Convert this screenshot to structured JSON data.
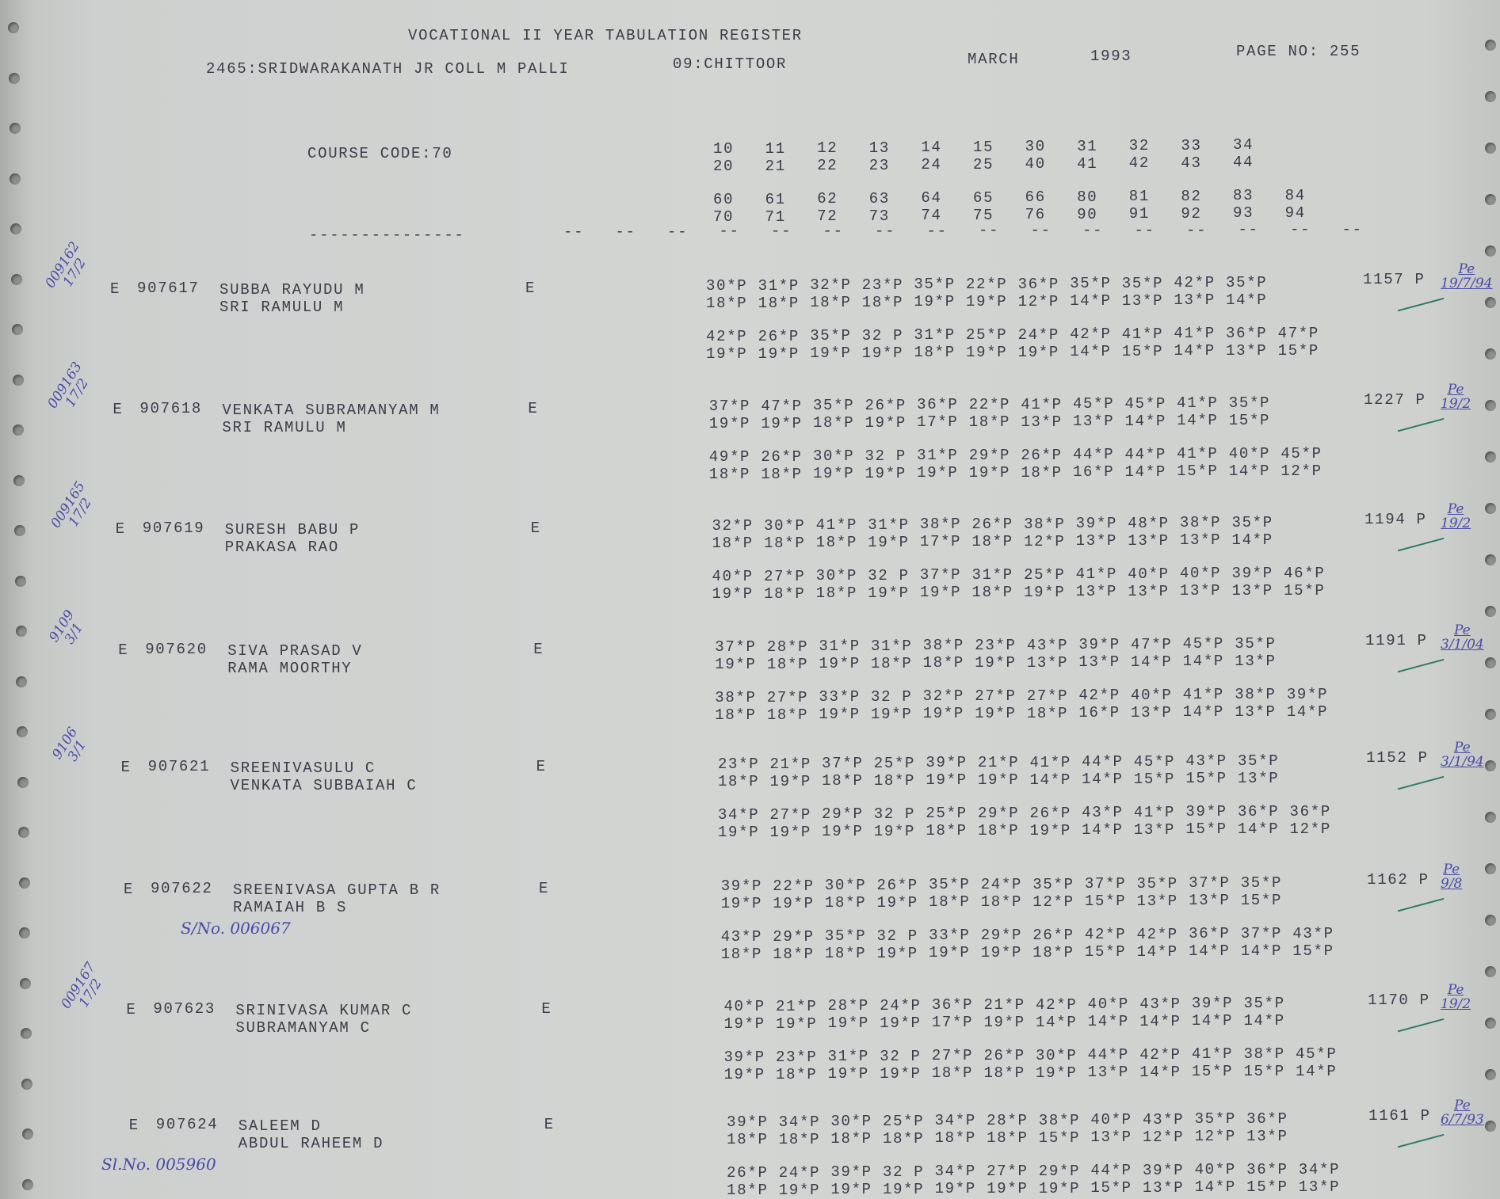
{
  "header": {
    "title": "VOCATIONAL II YEAR TABULATION REGISTER",
    "college": "2465:SRIDWARAKANATH JR COLL M PALLI",
    "district": "09:CHITTOOR",
    "month": "MARCH",
    "year": "1993",
    "page": "PAGE NO: 255",
    "course_code": "COURSE CODE:70",
    "separator": "---------------",
    "dash": "--"
  },
  "columns": {
    "row1": [
      "10",
      "11",
      "12",
      "13",
      "14",
      "15",
      "30",
      "31",
      "32",
      "33",
      "34"
    ],
    "row2": [
      "20",
      "21",
      "22",
      "23",
      "24",
      "25",
      "40",
      "41",
      "42",
      "43",
      "44"
    ],
    "row3": [
      "60",
      "61",
      "62",
      "63",
      "64",
      "65",
      "66",
      "80",
      "81",
      "82",
      "83",
      "84"
    ],
    "row4": [
      "70",
      "71",
      "72",
      "73",
      "74",
      "75",
      "76",
      "90",
      "91",
      "92",
      "93",
      "94"
    ]
  },
  "students": [
    {
      "prefix": "E",
      "roll": "907617",
      "name": "SUBBA RAYUDU M",
      "father": "SRI RAMULU M",
      "medium": "E",
      "total": "1157 P",
      "marks": [
        [
          "30*P",
          "31*P",
          "32*P",
          "23*P",
          "35*P",
          "22*P",
          "36*P",
          "35*P",
          "35*P",
          "42*P",
          "35*P"
        ],
        [
          "18*P",
          "18*P",
          "18*P",
          "18*P",
          "19*P",
          "19*P",
          "12*P",
          "14*P",
          "13*P",
          "13*P",
          "14*P"
        ],
        [
          "42*P",
          "26*P",
          "35*P",
          "32 P",
          "31*P",
          "25*P",
          "24*P",
          "42*P",
          "41*P",
          "41*P",
          "36*P",
          "47*P"
        ],
        [
          "19*P",
          "19*P",
          "19*P",
          "19*P",
          "18*P",
          "19*P",
          "19*P",
          "14*P",
          "15*P",
          "14*P",
          "13*P",
          "15*P"
        ]
      ],
      "note_left": "009162\n17/2",
      "note_right": "Pe\n19/7/94",
      "note_below": ""
    },
    {
      "prefix": "E",
      "roll": "907618",
      "name": "VENKATA SUBRAMANYAM M",
      "father": "SRI RAMULU M",
      "medium": "E",
      "total": "1227 P",
      "marks": [
        [
          "37*P",
          "47*P",
          "35*P",
          "26*P",
          "36*P",
          "22*P",
          "41*P",
          "45*P",
          "45*P",
          "41*P",
          "35*P"
        ],
        [
          "19*P",
          "19*P",
          "18*P",
          "19*P",
          "17*P",
          "18*P",
          "13*P",
          "13*P",
          "14*P",
          "14*P",
          "15*P"
        ],
        [
          "49*P",
          "26*P",
          "30*P",
          "32 P",
          "31*P",
          "29*P",
          "26*P",
          "44*P",
          "44*P",
          "41*P",
          "40*P",
          "45*P"
        ],
        [
          "18*P",
          "18*P",
          "19*P",
          "19*P",
          "19*P",
          "19*P",
          "18*P",
          "16*P",
          "14*P",
          "15*P",
          "14*P",
          "12*P"
        ]
      ],
      "note_left": "009163\n17/2",
      "note_right": "Pe\n19/2",
      "note_below": ""
    },
    {
      "prefix": "E",
      "roll": "907619",
      "name": "SURESH BABU P",
      "father": "PRAKASA RAO",
      "medium": "E",
      "total": "1194 P",
      "marks": [
        [
          "32*P",
          "30*P",
          "41*P",
          "31*P",
          "38*P",
          "26*P",
          "38*P",
          "39*P",
          "48*P",
          "38*P",
          "35*P"
        ],
        [
          "18*P",
          "18*P",
          "18*P",
          "19*P",
          "17*P",
          "18*P",
          "12*P",
          "13*P",
          "13*P",
          "13*P",
          "14*P"
        ],
        [
          "40*P",
          "27*P",
          "30*P",
          "32 P",
          "37*P",
          "31*P",
          "25*P",
          "41*P",
          "40*P",
          "40*P",
          "39*P",
          "46*P"
        ],
        [
          "19*P",
          "18*P",
          "18*P",
          "19*P",
          "19*P",
          "18*P",
          "19*P",
          "13*P",
          "13*P",
          "13*P",
          "13*P",
          "15*P"
        ]
      ],
      "note_left": "009165\n17/2",
      "note_right": "Pe\n19/2",
      "note_below": ""
    },
    {
      "prefix": "E",
      "roll": "907620",
      "name": "SIVA PRASAD V",
      "father": "RAMA MOORTHY",
      "medium": "E",
      "total": "1191 P",
      "marks": [
        [
          "37*P",
          "28*P",
          "31*P",
          "31*P",
          "38*P",
          "23*P",
          "43*P",
          "39*P",
          "47*P",
          "45*P",
          "35*P"
        ],
        [
          "19*P",
          "18*P",
          "19*P",
          "18*P",
          "18*P",
          "19*P",
          "13*P",
          "13*P",
          "14*P",
          "14*P",
          "13*P"
        ],
        [
          "38*P",
          "27*P",
          "33*P",
          "32 P",
          "32*P",
          "27*P",
          "27*P",
          "42*P",
          "40*P",
          "41*P",
          "38*P",
          "39*P"
        ],
        [
          "18*P",
          "18*P",
          "19*P",
          "19*P",
          "19*P",
          "19*P",
          "18*P",
          "16*P",
          "13*P",
          "14*P",
          "13*P",
          "14*P"
        ]
      ],
      "note_left": "9109\n3/1",
      "note_right": "Pe\n3/1/04",
      "note_below": ""
    },
    {
      "prefix": "E",
      "roll": "907621",
      "name": "SREENIVASULU C",
      "father": "VENKATA SUBBAIAH C",
      "medium": "E",
      "total": "1152 P",
      "marks": [
        [
          "23*P",
          "21*P",
          "37*P",
          "25*P",
          "39*P",
          "21*P",
          "41*P",
          "44*P",
          "45*P",
          "43*P",
          "35*P"
        ],
        [
          "18*P",
          "19*P",
          "18*P",
          "18*P",
          "19*P",
          "19*P",
          "14*P",
          "14*P",
          "15*P",
          "15*P",
          "13*P"
        ],
        [
          "34*P",
          "27*P",
          "29*P",
          "32 P",
          "25*P",
          "29*P",
          "26*P",
          "43*P",
          "41*P",
          "39*P",
          "36*P",
          "36*P"
        ],
        [
          "19*P",
          "19*P",
          "19*P",
          "19*P",
          "18*P",
          "18*P",
          "19*P",
          "14*P",
          "13*P",
          "15*P",
          "14*P",
          "12*P"
        ]
      ],
      "note_left": "9106\n3/1",
      "note_right": "Pe\n3/1/94",
      "note_below": ""
    },
    {
      "prefix": "E",
      "roll": "907622",
      "name": "SREENIVASA GUPTA B R",
      "father": "RAMAIAH B S",
      "medium": "E",
      "total": "1162 P",
      "marks": [
        [
          "39*P",
          "22*P",
          "30*P",
          "26*P",
          "35*P",
          "24*P",
          "35*P",
          "37*P",
          "35*P",
          "37*P",
          "35*P"
        ],
        [
          "19*P",
          "19*P",
          "18*P",
          "19*P",
          "18*P",
          "18*P",
          "12*P",
          "15*P",
          "13*P",
          "13*P",
          "15*P"
        ],
        [
          "43*P",
          "29*P",
          "35*P",
          "32 P",
          "33*P",
          "29*P",
          "26*P",
          "42*P",
          "42*P",
          "36*P",
          "37*P",
          "43*P"
        ],
        [
          "18*P",
          "18*P",
          "18*P",
          "19*P",
          "19*P",
          "19*P",
          "18*P",
          "15*P",
          "14*P",
          "14*P",
          "14*P",
          "15*P"
        ]
      ],
      "note_left": "",
      "note_right": "Pe\n9/8",
      "note_below": "S/No. 006067"
    },
    {
      "prefix": "E",
      "roll": "907623",
      "name": "SRINIVASA KUMAR C",
      "father": "SUBRAMANYAM C",
      "medium": "E",
      "total": "1170 P",
      "marks": [
        [
          "40*P",
          "21*P",
          "28*P",
          "24*P",
          "36*P",
          "21*P",
          "42*P",
          "40*P",
          "43*P",
          "39*P",
          "35*P"
        ],
        [
          "19*P",
          "19*P",
          "19*P",
          "19*P",
          "17*P",
          "19*P",
          "14*P",
          "14*P",
          "14*P",
          "14*P",
          "14*P"
        ],
        [
          "39*P",
          "23*P",
          "31*P",
          "32 P",
          "27*P",
          "26*P",
          "30*P",
          "44*P",
          "42*P",
          "41*P",
          "38*P",
          "45*P"
        ],
        [
          "19*P",
          "18*P",
          "19*P",
          "19*P",
          "18*P",
          "18*P",
          "19*P",
          "13*P",
          "14*P",
          "15*P",
          "15*P",
          "14*P"
        ]
      ],
      "note_left": "009167\n17/2",
      "note_right": "Pe\n19/2",
      "note_below": ""
    },
    {
      "prefix": "E",
      "roll": "907624",
      "name": "SALEEM D",
      "father": "ABDUL RAHEEM D",
      "medium": "E",
      "total": "1161 P",
      "marks": [
        [
          "39*P",
          "34*P",
          "30*P",
          "25*P",
          "34*P",
          "28*P",
          "38*P",
          "40*P",
          "43*P",
          "35*P",
          "36*P"
        ],
        [
          "18*P",
          "18*P",
          "18*P",
          "18*P",
          "18*P",
          "18*P",
          "15*P",
          "13*P",
          "12*P",
          "12*P",
          "13*P"
        ],
        [
          "26*P",
          "24*P",
          "39*P",
          "32 P",
          "34*P",
          "27*P",
          "29*P",
          "44*P",
          "39*P",
          "40*P",
          "36*P",
          "34*P"
        ],
        [
          "18*P",
          "19*P",
          "19*P",
          "19*P",
          "19*P",
          "19*P",
          "19*P",
          "15*P",
          "13*P",
          "14*P",
          "15*P",
          "13*P"
        ]
      ],
      "note_left": "",
      "note_right": "Pe\n6/7/93",
      "note_below": "Sl.No. 005960"
    }
  ]
}
